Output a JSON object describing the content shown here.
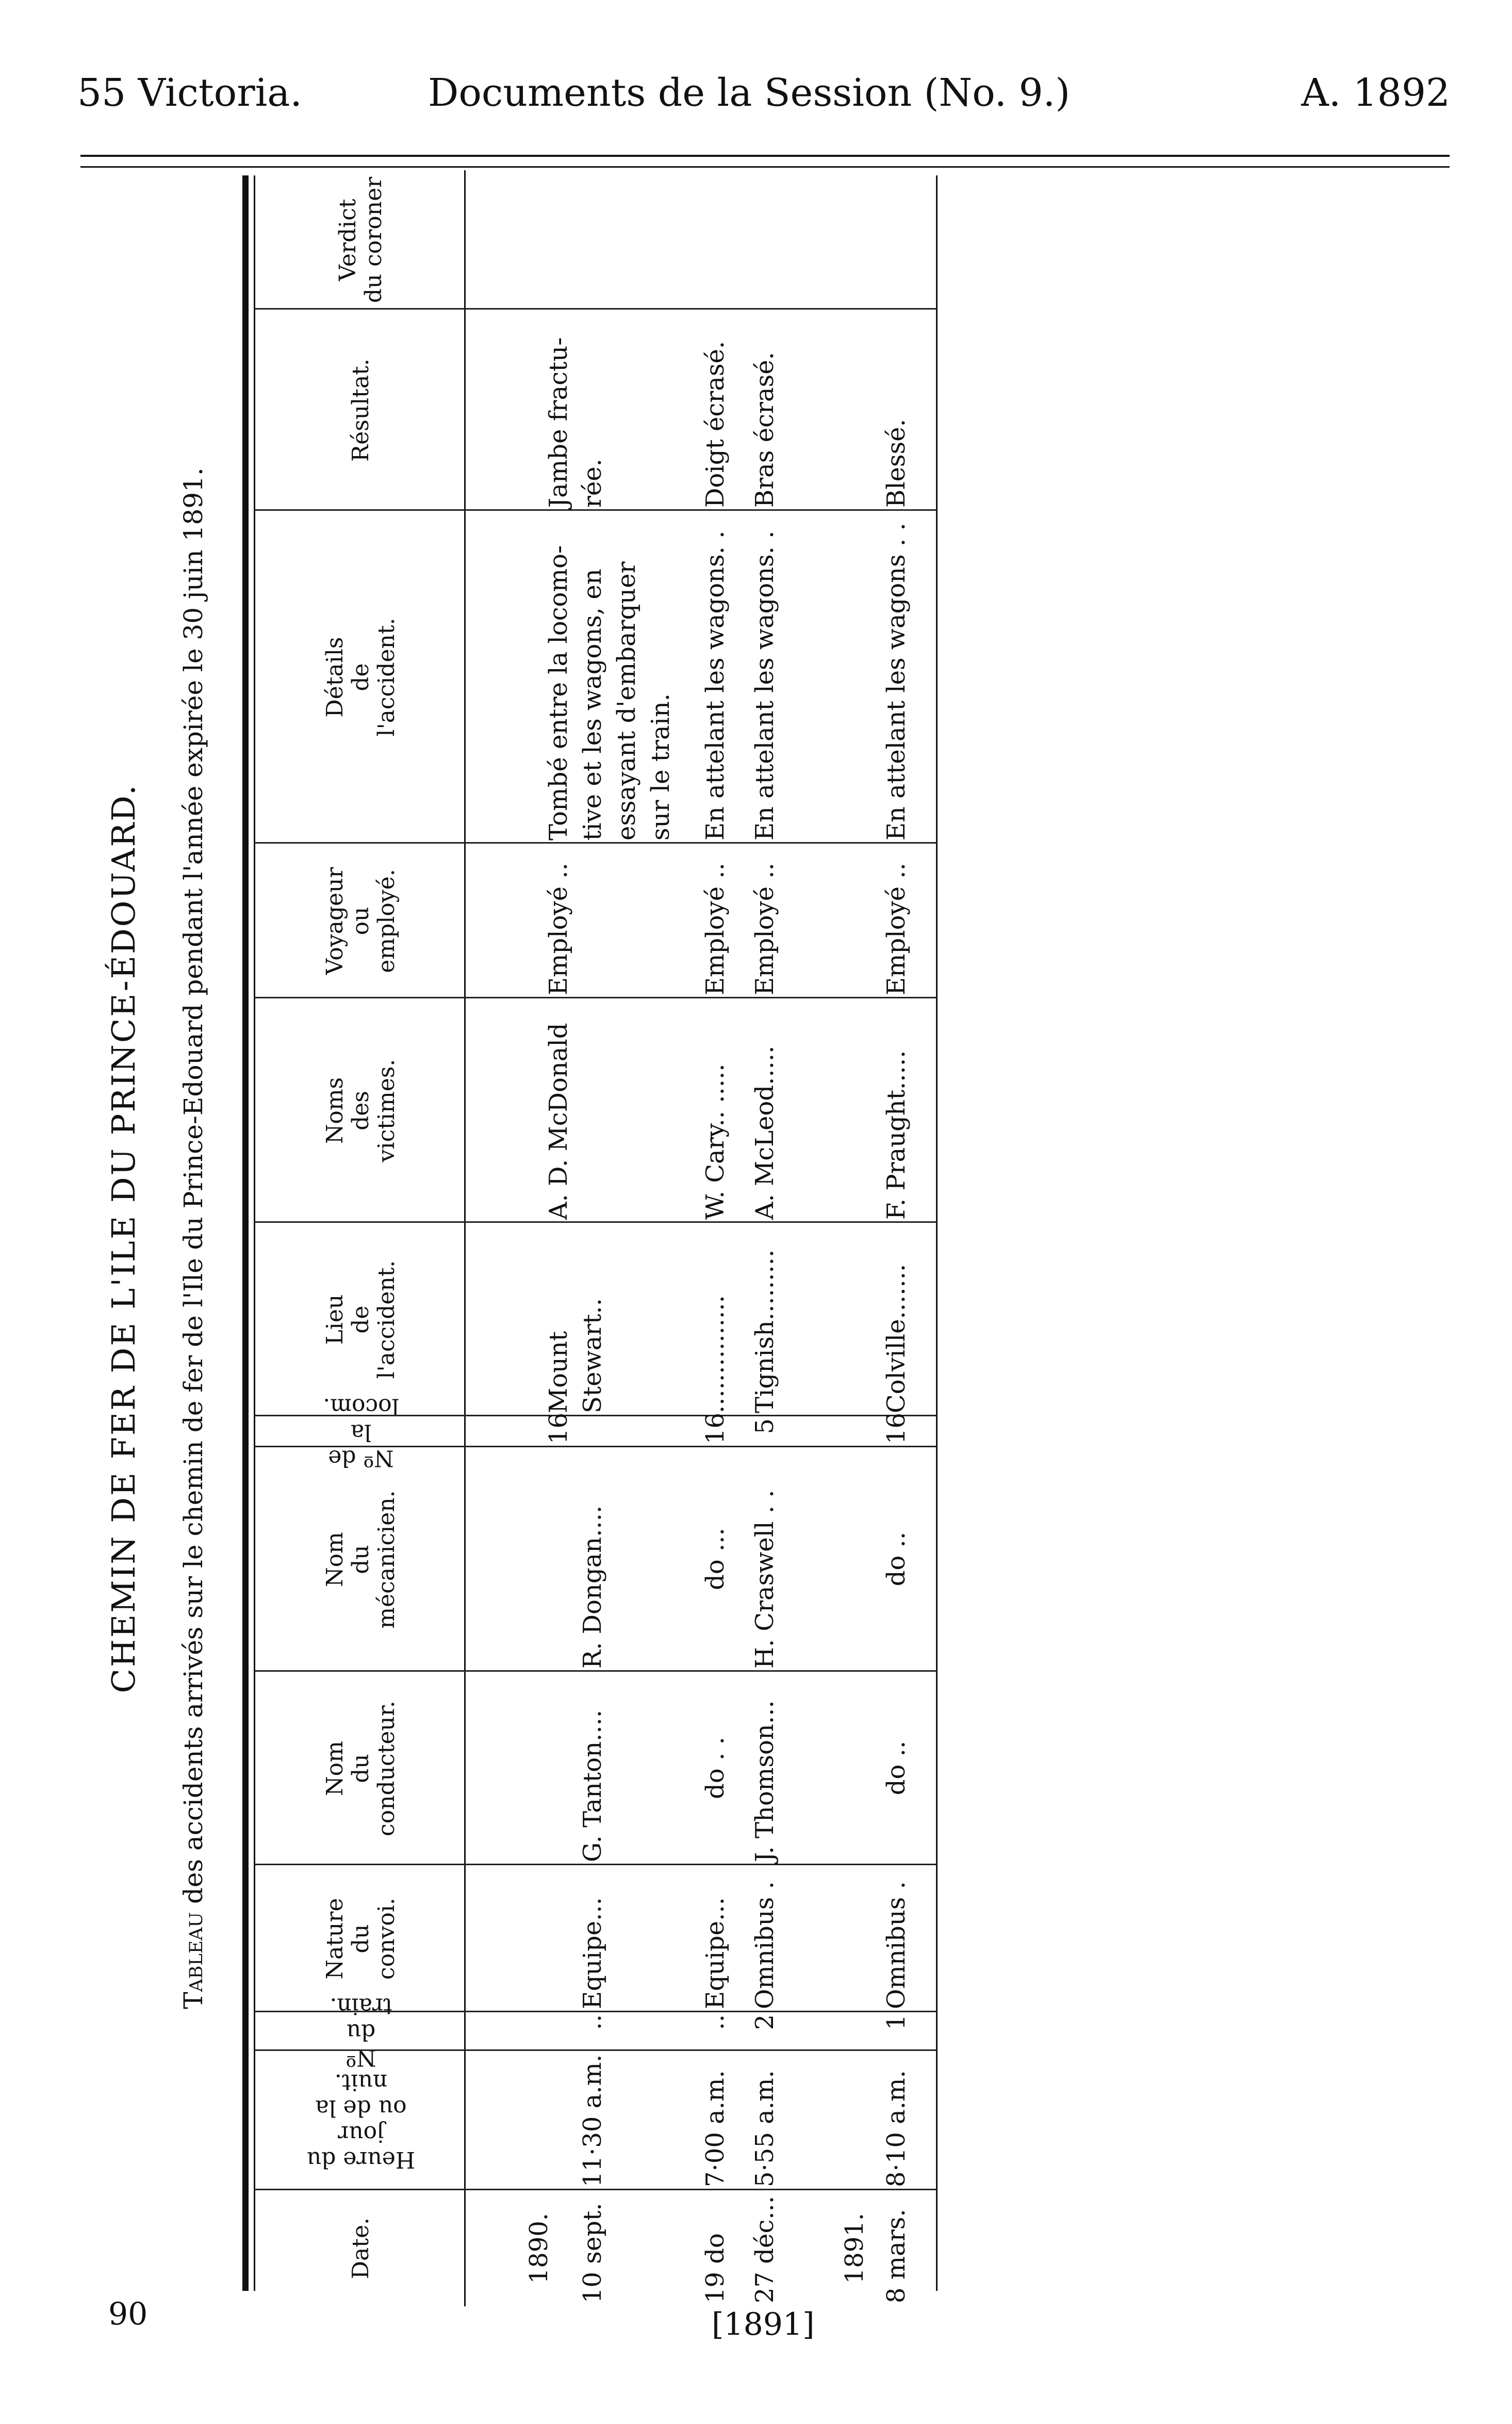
{
  "running_head": {
    "left": "55 Victoria.",
    "center": "Documents de la Session (No. 9.)",
    "right": "A. 1892"
  },
  "title": "CHEMIN DE FER DE L'ILE DU PRINCE-ÉDOUARD.",
  "subtitle": {
    "lead": "Tableau",
    "rest": " des accidents arrivés sur le chemin de fer de l'Ile du Prince-Edouard pendant l'année expirée le 30 juin 1891."
  },
  "table": {
    "headers": [
      "Date.",
      "Heure du jour\nou de la nuit.",
      "Nº du train.",
      "Nature\ndu\nconvoi.",
      "Nom\ndu\nconducteur.",
      "Nom\ndu\nmécanicien.",
      "Nº de la locom.",
      "Lieu\nde\nl'accident.",
      "Noms\ndes\nvictimes.",
      "Voyageur\nou\nemployé.",
      "Détails\nde\nl'accident.",
      "Résultat.",
      "Verdict\ndu coroner"
    ],
    "year_labels": [
      "1890.",
      "1891."
    ],
    "rows": [
      [
        "10 sept.",
        "11·30 a.m.",
        "..",
        "Equipe...",
        "G. Tanton....",
        "R. Dongan....",
        "16",
        "Mount Stewart..",
        "A. D. McDonald",
        "Employé ..",
        "Tombé entre la locomo-\n   tive et les wagons, en\n   essayant d'embarquer\n   sur le train.",
        "Jambe fractu-\n   rée.",
        ""
      ],
      [
        "19  do",
        "7·00 a.m.",
        "..",
        "Equipe...",
        "do     .  .",
        "do     ...",
        "16",
        "...............",
        "W. Cary..  .....",
        "Employé ..",
        "En attelant les wagons. .",
        "Doigt écrasé.",
        ""
      ],
      [
        "27 déc...",
        "5·55 a.m.",
        "2",
        "Omnibus .",
        "J. Thomson...",
        "H. Craswell . .",
        "5",
        "Tignish.........",
        "A. McLeod.....",
        "Employé ..",
        "En attelant les wagons. .",
        "Bras écrasé.",
        ""
      ],
      [
        "8 mars.",
        "8·10 a.m.",
        "1",
        "Omnibus .",
        "do     ..",
        "do     ..",
        "16",
        "Colville.......",
        "F. Praught.....",
        "Employé ..",
        "En attelant les wagons . .",
        "Blessé.",
        ""
      ]
    ]
  },
  "footer": {
    "page_number": "90",
    "year_mark": "[1891]"
  }
}
